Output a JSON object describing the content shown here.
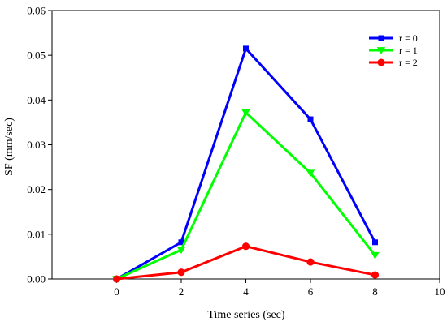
{
  "chart_data": {
    "type": "line",
    "xlabel": "Time series (sec)",
    "ylabel": "SF (mm/sec)",
    "xlim": [
      -2,
      10
    ],
    "ylim": [
      0,
      0.06
    ],
    "x_ticks": [
      "0",
      "2",
      "4",
      "6",
      "8",
      "10"
    ],
    "x_tick_values": [
      0,
      2,
      4,
      6,
      8,
      10
    ],
    "y_ticks": [
      "0.00",
      "0.01",
      "0.02",
      "0.03",
      "0.04",
      "0.05",
      "0.06"
    ],
    "y_tick_values": [
      0,
      0.01,
      0.02,
      0.03,
      0.04,
      0.05,
      0.06
    ],
    "grid": false,
    "legend_position": "top-right",
    "x": [
      0,
      2,
      4,
      6,
      8
    ],
    "series": [
      {
        "name": "r = 0",
        "values": [
          0.0,
          0.0082,
          0.0515,
          0.0357,
          0.0082
        ],
        "color": "#0000ff",
        "marker": "square"
      },
      {
        "name": "r = 1",
        "values": [
          0.0,
          0.0065,
          0.0372,
          0.0237,
          0.0053
        ],
        "color": "#00ff00",
        "marker": "triangle-down"
      },
      {
        "name": "r = 2",
        "values": [
          0.0,
          0.0015,
          0.0073,
          0.0038,
          0.0009
        ],
        "color": "#ff0000",
        "marker": "circle"
      }
    ]
  }
}
